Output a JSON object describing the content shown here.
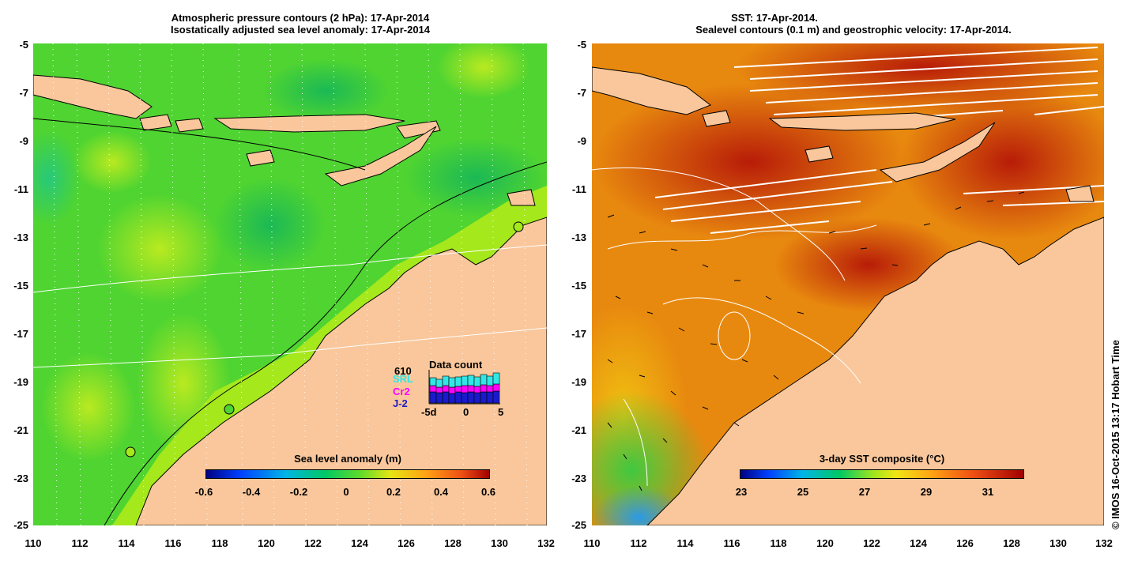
{
  "left_panel": {
    "title_line1": "Atmospheric pressure contours (2 hPa): 17-Apr-2014",
    "title_line2": "Isostatically adjusted sea level anomaly: 17-Apr-2014",
    "y_ticks": [
      "-5",
      "-7",
      "-9",
      "-11",
      "-13",
      "-15",
      "-17",
      "-19",
      "-21",
      "-23",
      "-25"
    ],
    "x_ticks": [
      "110",
      "112",
      "114",
      "116",
      "118",
      "120",
      "122",
      "124",
      "126",
      "128",
      "130",
      "132"
    ],
    "colorbar": {
      "label": "Sea level anomaly (m)",
      "ticks": [
        "-0.6",
        "-0.4",
        "-0.2",
        "0",
        "0.2",
        "0.4",
        "0.6"
      ]
    },
    "data_count": {
      "title": "Data count",
      "total": "610",
      "satellites": [
        "SRL",
        "Cr2",
        "J-2"
      ],
      "satellite_colors": [
        "#33e6e6",
        "#ff00ff",
        "#1a1acc"
      ],
      "x_ticks": [
        "-5d",
        "0",
        "5"
      ]
    }
  },
  "right_panel": {
    "title_line1": "SST: 17-Apr-2014.",
    "title_line2": "Sealevel contours (0.1 m) and geostrophic velocity: 17-Apr-2014.",
    "y_ticks": [
      "-5",
      "-7",
      "-9",
      "-11",
      "-13",
      "-15",
      "-17",
      "-19",
      "-21",
      "-23",
      "-25"
    ],
    "x_ticks": [
      "110",
      "112",
      "114",
      "116",
      "118",
      "120",
      "122",
      "124",
      "126",
      "128",
      "130",
      "132"
    ],
    "colorbar": {
      "label": "3-day SST composite (°C)",
      "ticks": [
        "23",
        "25",
        "27",
        "29",
        "31"
      ]
    }
  },
  "credit": "© IMOS 16-Oct-2015 13:17 Hobart Time",
  "colors": {
    "land": "#f9c79b",
    "ocean_green": "#4fd431",
    "ocean_yellow_green": "#a5e81c",
    "sst_orange": "#e8890f",
    "sst_red": "#b81c08"
  }
}
